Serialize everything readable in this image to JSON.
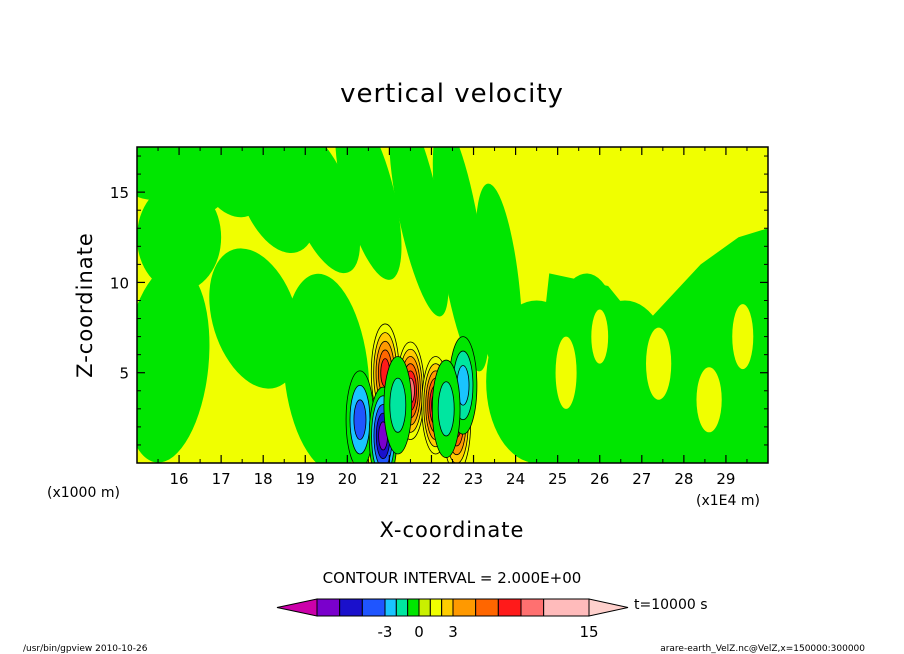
{
  "chart_data": {
    "type": "heatmap",
    "title": "vertical velocity",
    "xlabel": "X-coordinate",
    "ylabel": "Z-coordinate",
    "x_unit_left": "(x1000 m)",
    "x_unit_right": "(x1E4 m)",
    "xlim": [
      15.0,
      30.0
    ],
    "ylim": [
      0.0,
      17.5
    ],
    "x_ticks": [
      16,
      17,
      18,
      19,
      20,
      21,
      22,
      23,
      24,
      25,
      26,
      27,
      28,
      29
    ],
    "y_ticks": [
      5,
      10,
      15
    ],
    "contour_interval_text": "CONTOUR INTERVAL = 2.000E+00",
    "colorbar": {
      "labels": [
        {
          "value": -3,
          "text": "-3"
        },
        {
          "value": 0,
          "text": "0"
        },
        {
          "value": 3,
          "text": "3"
        },
        {
          "value": 15,
          "text": "15"
        }
      ],
      "levels": [
        -11,
        -9,
        -7,
        -5,
        -3,
        -2,
        -1,
        0,
        1,
        2,
        3,
        5,
        7,
        9,
        11,
        15,
        19
      ],
      "colors": [
        "#cc00aa",
        "#7a00cc",
        "#1a10cc",
        "#1f55ff",
        "#19c4ff",
        "#00e6a0",
        "#00e600",
        "#c9f000",
        "#f0ff00",
        "#ffcc00",
        "#ff9900",
        "#ff6600",
        "#ff1a1a",
        "#ff7070",
        "#ffbbbb",
        "#ffd0cc"
      ]
    },
    "time_label": "t=10000 s",
    "features": [
      {
        "x": 20.9,
        "z": 5.0,
        "w": 8
      },
      {
        "x": 21.5,
        "z": 4.0,
        "w": 9
      },
      {
        "x": 22.1,
        "z": 3.2,
        "w": 10
      },
      {
        "x": 22.6,
        "z": 2.2,
        "w": 8
      },
      {
        "x": 20.3,
        "z": 2.4,
        "w": -4
      },
      {
        "x": 20.85,
        "z": 1.5,
        "w": -8
      },
      {
        "x": 22.75,
        "z": 4.3,
        "w": -3
      },
      {
        "x": 21.2,
        "z": 3.2,
        "w": -2
      },
      {
        "x": 22.35,
        "z": 3.0,
        "w": -2
      }
    ]
  },
  "footer": {
    "left": "/usr/bin/gpview  2010-10-26",
    "right": "arare-earth_VelZ.nc@VelZ,x=150000:300000"
  }
}
